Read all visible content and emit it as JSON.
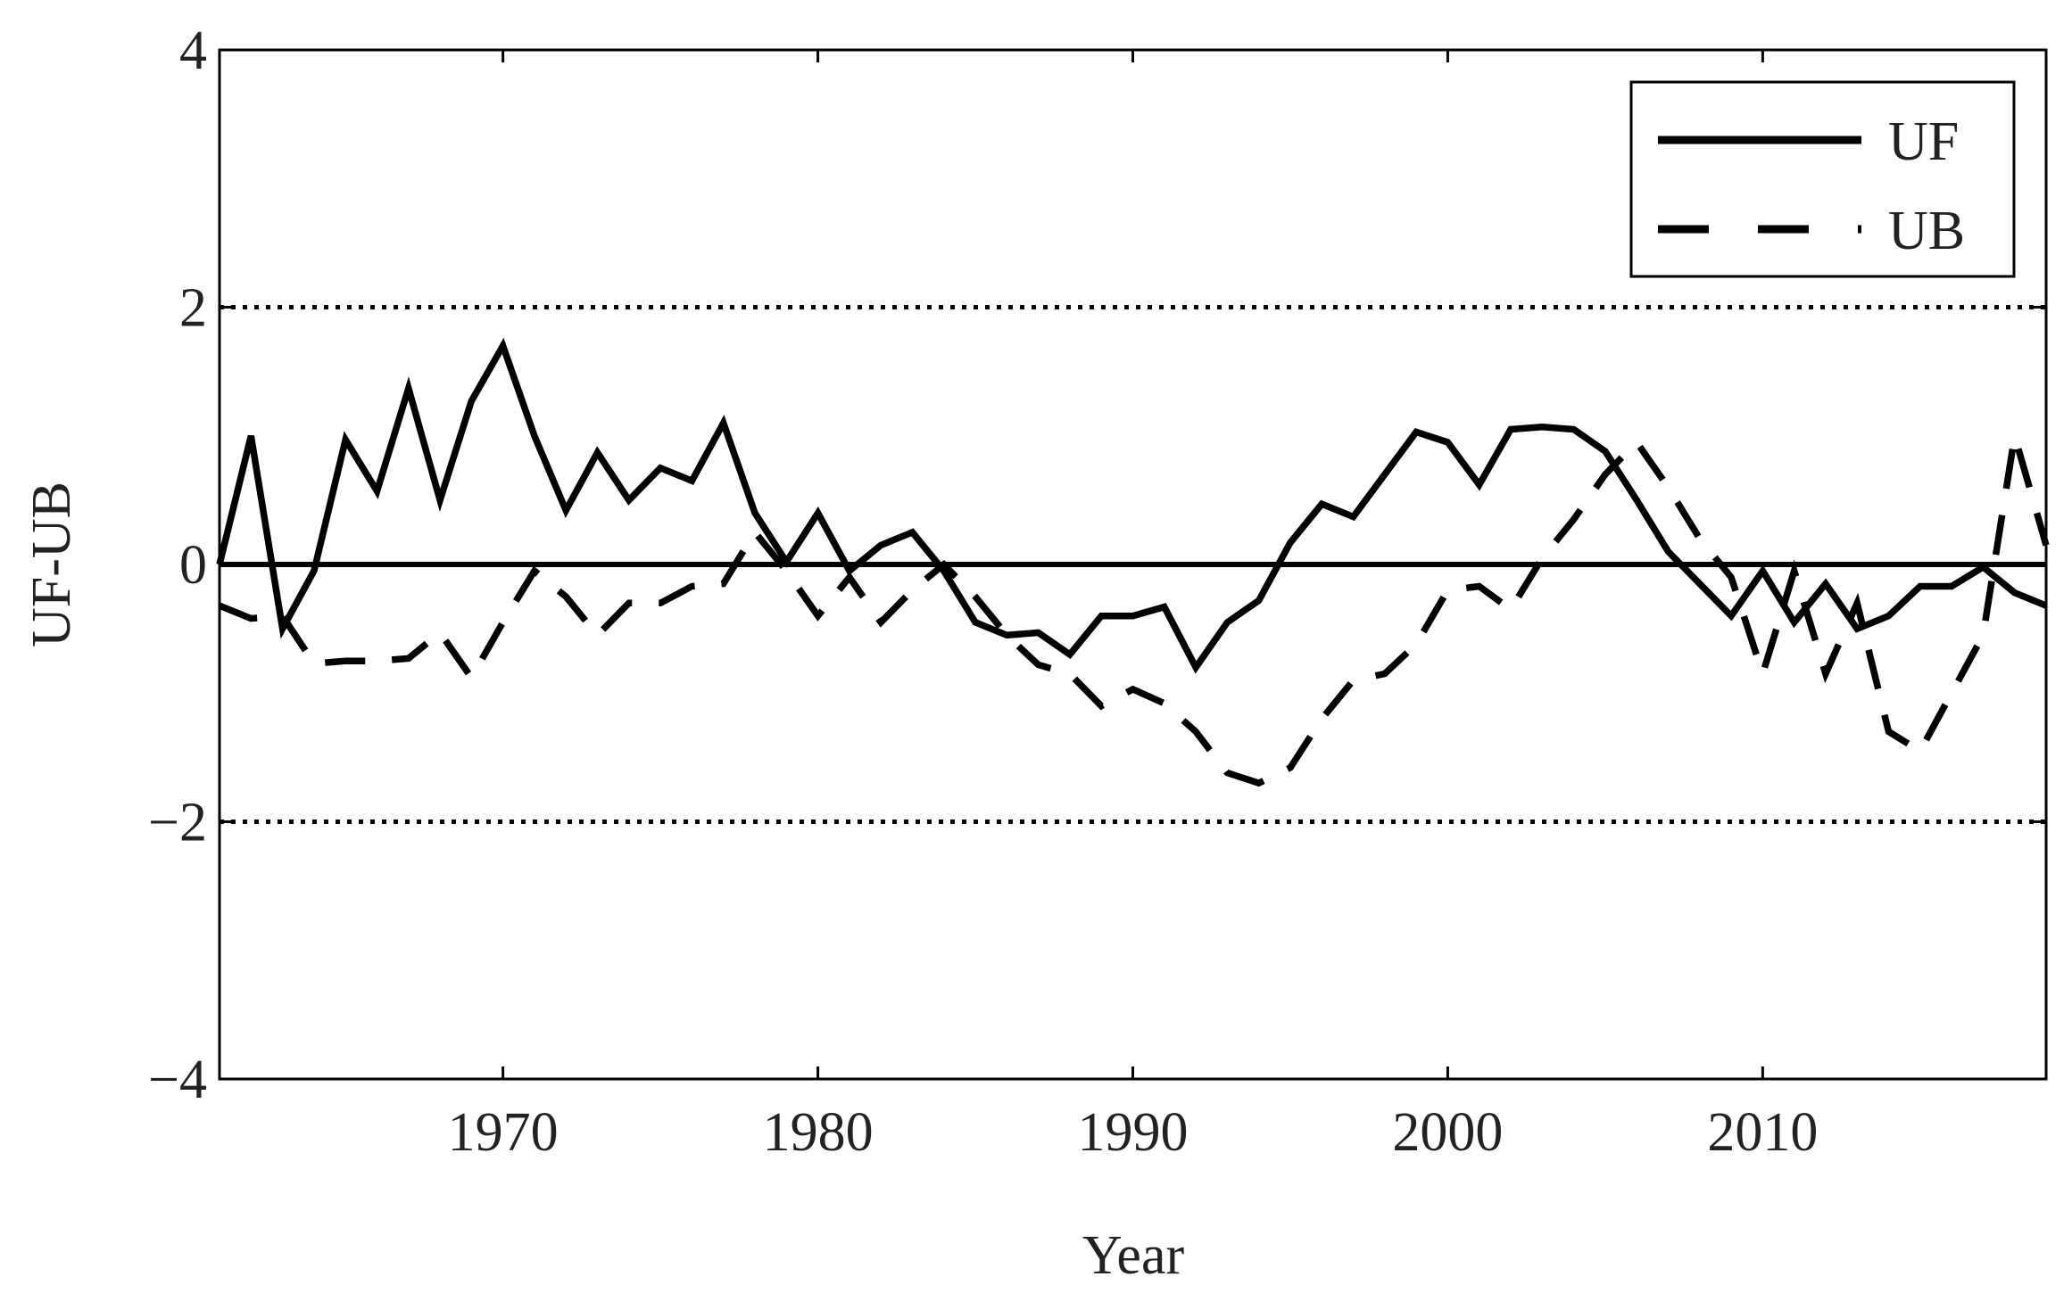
{
  "chart_data": {
    "type": "line",
    "x_label": "Year",
    "y_label": "UF-UB",
    "x": [
      1961,
      1962,
      1963,
      1964,
      1965,
      1966,
      1967,
      1968,
      1969,
      1970,
      1971,
      1972,
      1973,
      1974,
      1975,
      1976,
      1977,
      1978,
      1979,
      1980,
      1981,
      1982,
      1983,
      1984,
      1985,
      1986,
      1987,
      1988,
      1989,
      1990,
      1991,
      1992,
      1993,
      1994,
      1995,
      1996,
      1997,
      1998,
      1999,
      2000,
      2001,
      2002,
      2003,
      2004,
      2005,
      2006,
      2007,
      2008,
      2009,
      2010,
      2011,
      2012,
      2013,
      2014,
      2015,
      2016,
      2017,
      2018,
      2019
    ],
    "series": [
      {
        "name": "UF",
        "color": "#000000",
        "dash": "solid",
        "values": [
          0,
          1.0,
          -0.5,
          -0.05,
          0.97,
          0.57,
          1.37,
          0.5,
          1.27,
          1.7,
          1.0,
          0.42,
          0.87,
          0.5,
          0.75,
          0.65,
          1.1,
          0.4,
          0.02,
          0.4,
          -0.05,
          0.15,
          0.25,
          -0.05,
          -0.45,
          -0.55,
          -0.53,
          -0.7,
          -0.4,
          -0.4,
          -0.33,
          -0.8,
          -0.45,
          -0.28,
          0.17,
          0.47,
          0.37,
          0.7,
          1.03,
          0.95,
          0.62,
          1.05,
          1.07,
          1.05,
          0.88,
          0.5,
          0.1,
          -0.15,
          -0.4,
          -0.05,
          -0.45,
          -0.15,
          -0.5,
          -0.4,
          -0.17,
          -0.17,
          -0.02,
          -0.22,
          -0.32
        ]
      },
      {
        "name": "UB",
        "color": "#000000",
        "dash": "dashed",
        "values": [
          -0.32,
          -0.42,
          -0.4,
          -0.77,
          -0.75,
          -0.75,
          -0.73,
          -0.53,
          -0.88,
          -0.45,
          -0.05,
          -0.25,
          -0.55,
          -0.3,
          -0.3,
          -0.17,
          -0.15,
          0.25,
          -0.05,
          -0.4,
          -0.1,
          -0.45,
          -0.2,
          0.0,
          -0.25,
          -0.55,
          -0.78,
          -0.85,
          -1.1,
          -0.97,
          -1.08,
          -1.3,
          -1.62,
          -1.7,
          -1.58,
          -1.2,
          -0.9,
          -0.85,
          -0.62,
          -0.2,
          -0.17,
          -0.35,
          0.05,
          0.35,
          0.7,
          0.95,
          0.6,
          0.2,
          -0.1,
          -0.85,
          -0.05,
          -0.85,
          -0.3,
          -1.3,
          -1.45,
          -1.0,
          -0.55,
          1.0,
          0.15
        ]
      }
    ],
    "hlines": [
      {
        "value": 2,
        "style": "dotted"
      },
      {
        "value": -2,
        "style": "dotted"
      },
      {
        "value": 0,
        "style": "solid"
      }
    ],
    "xlim": [
      1961,
      2019
    ],
    "xticks": [
      1970,
      1980,
      1990,
      2000,
      2010
    ],
    "ylim": [
      -4,
      4
    ],
    "yticks": [
      {
        "value": -4,
        "label": "−4"
      },
      {
        "value": -2,
        "label": "−2"
      },
      0,
      2,
      4
    ],
    "legend": "upper right",
    "grid": false
  }
}
